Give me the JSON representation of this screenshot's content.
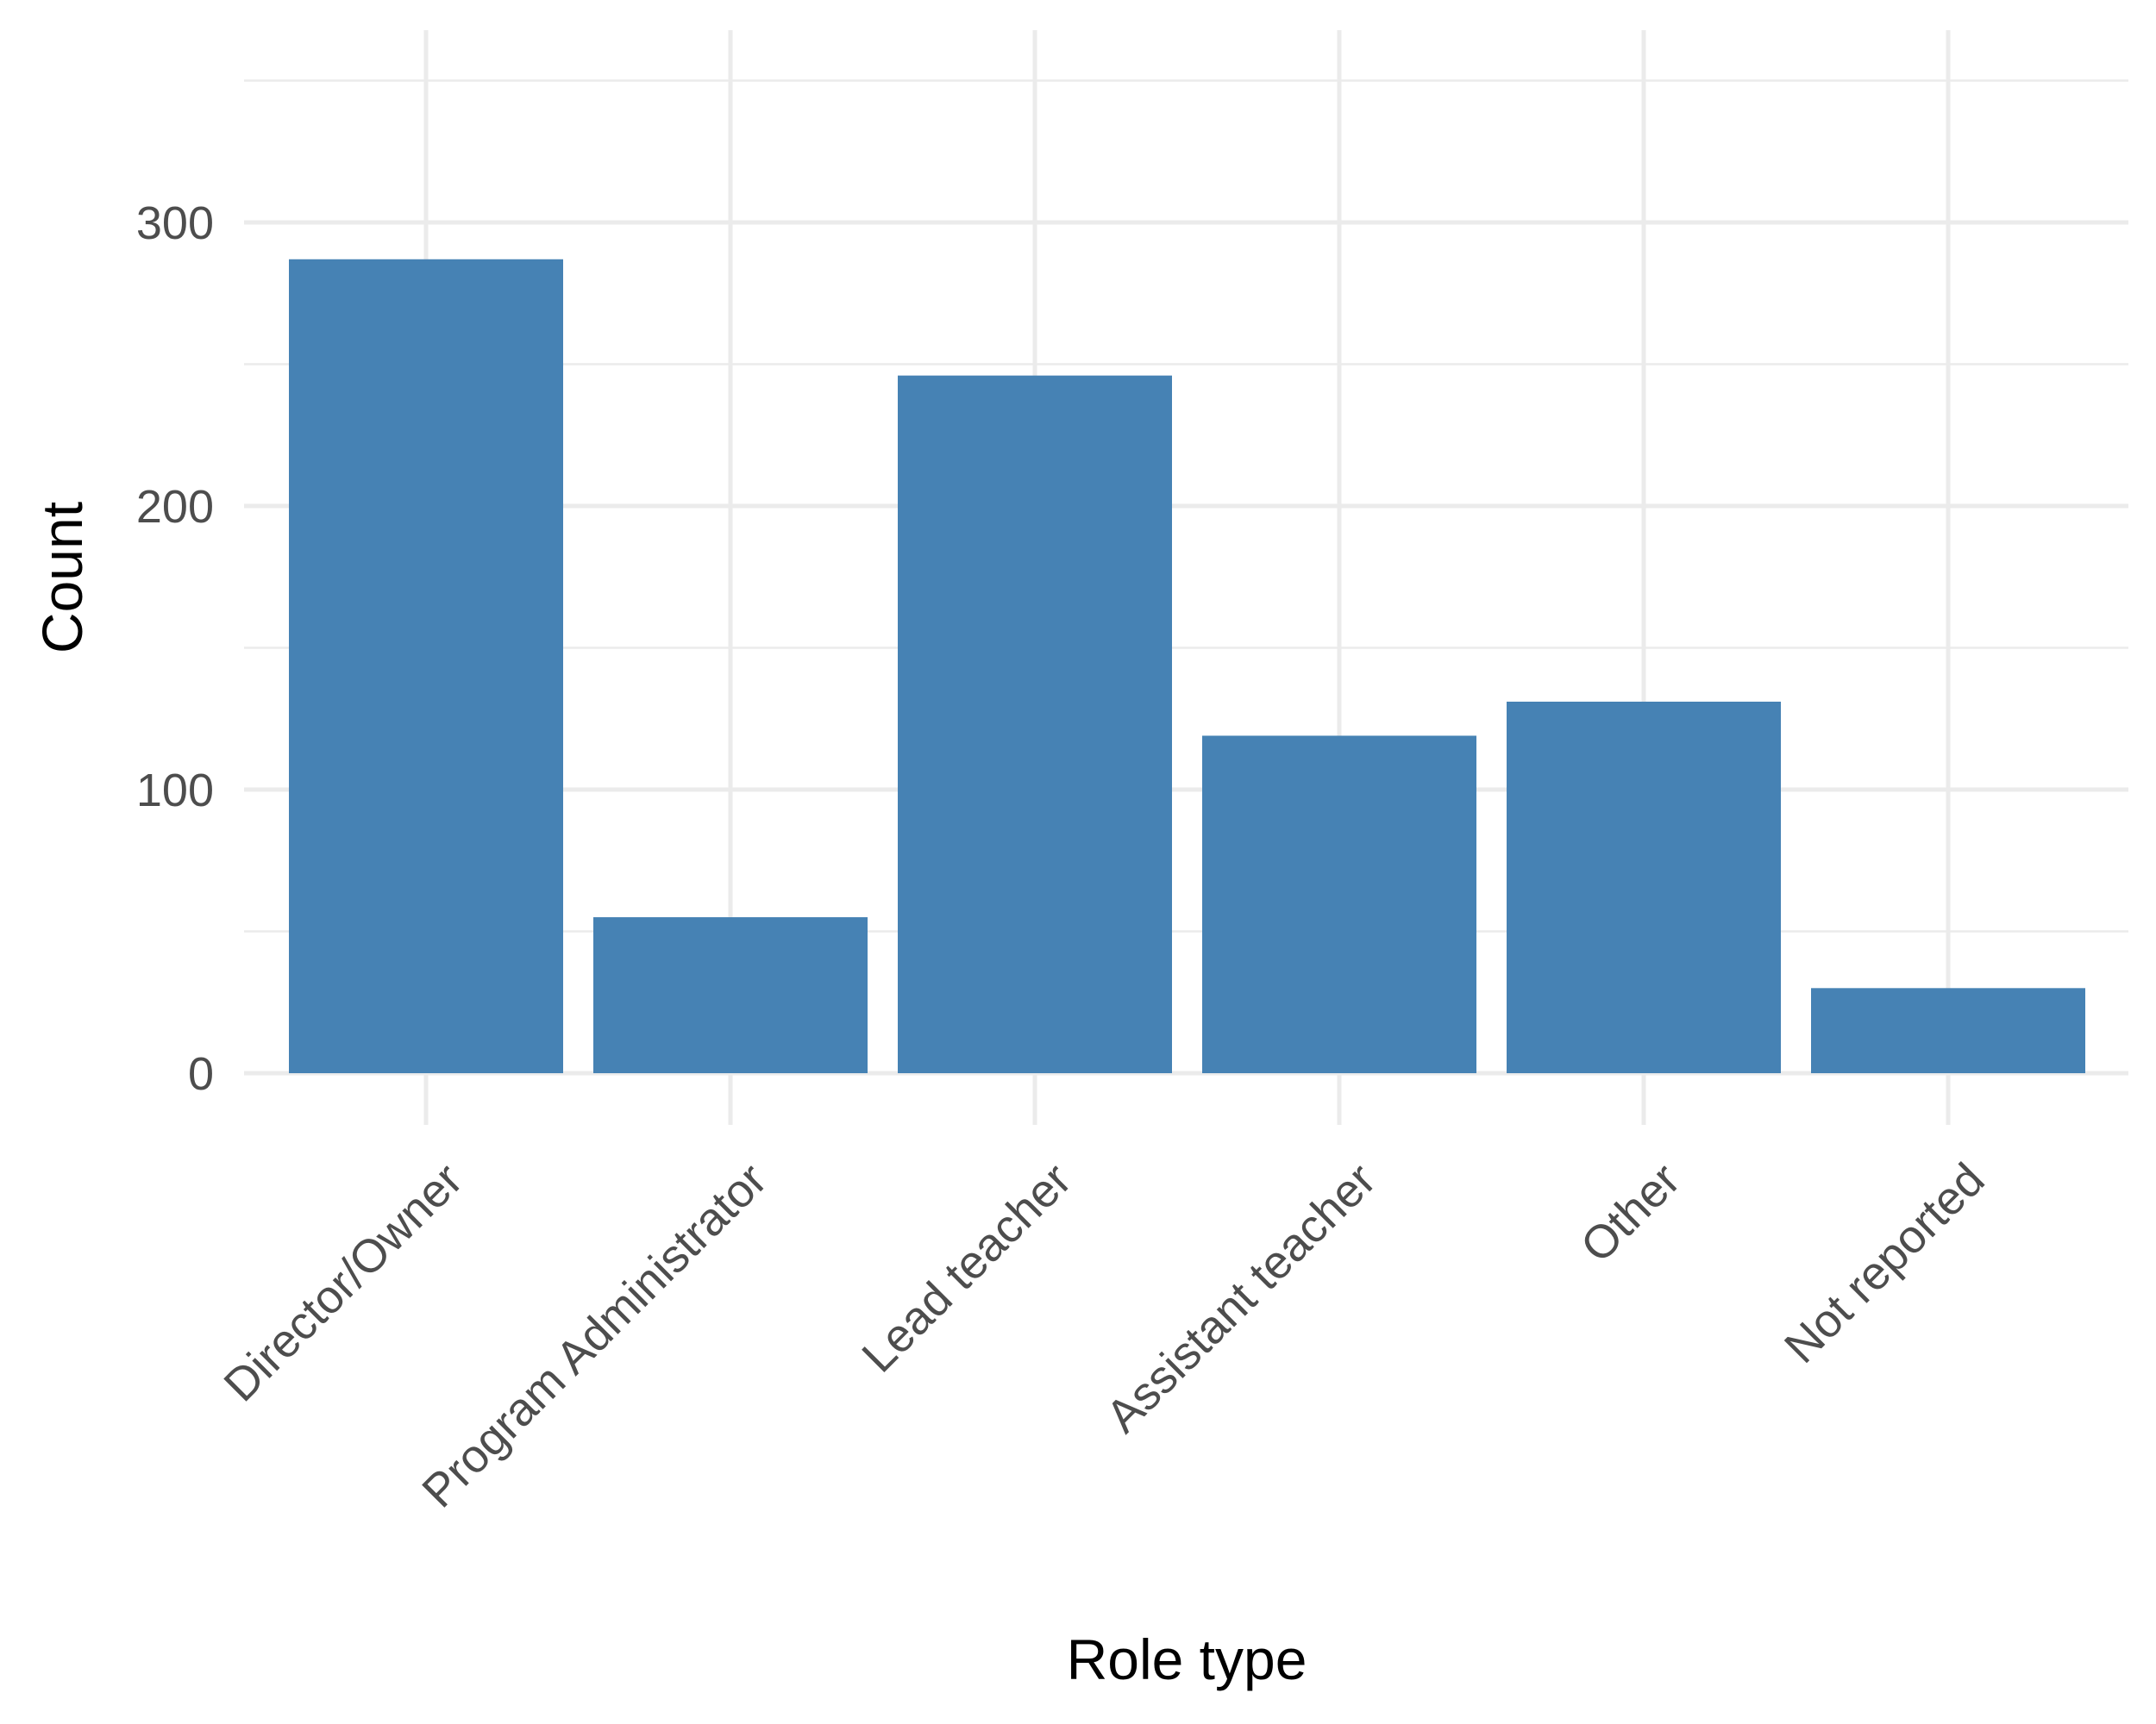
{
  "chart_data": {
    "type": "bar",
    "title": "",
    "xlabel": "Role type",
    "ylabel": "Count",
    "categories": [
      "Director/Owner",
      "Program Administrator",
      "Lead teacher",
      "Assistant teacher",
      "Other",
      "Not reported"
    ],
    "values": [
      287,
      55,
      246,
      119,
      131,
      30
    ],
    "ylim": [
      0,
      350
    ],
    "yticks": [
      0,
      100,
      200,
      300
    ],
    "ytick_labels": [
      "0",
      "100",
      "200",
      "300"
    ],
    "grid": true,
    "legend": "none",
    "bar_color": "#4682b4"
  }
}
